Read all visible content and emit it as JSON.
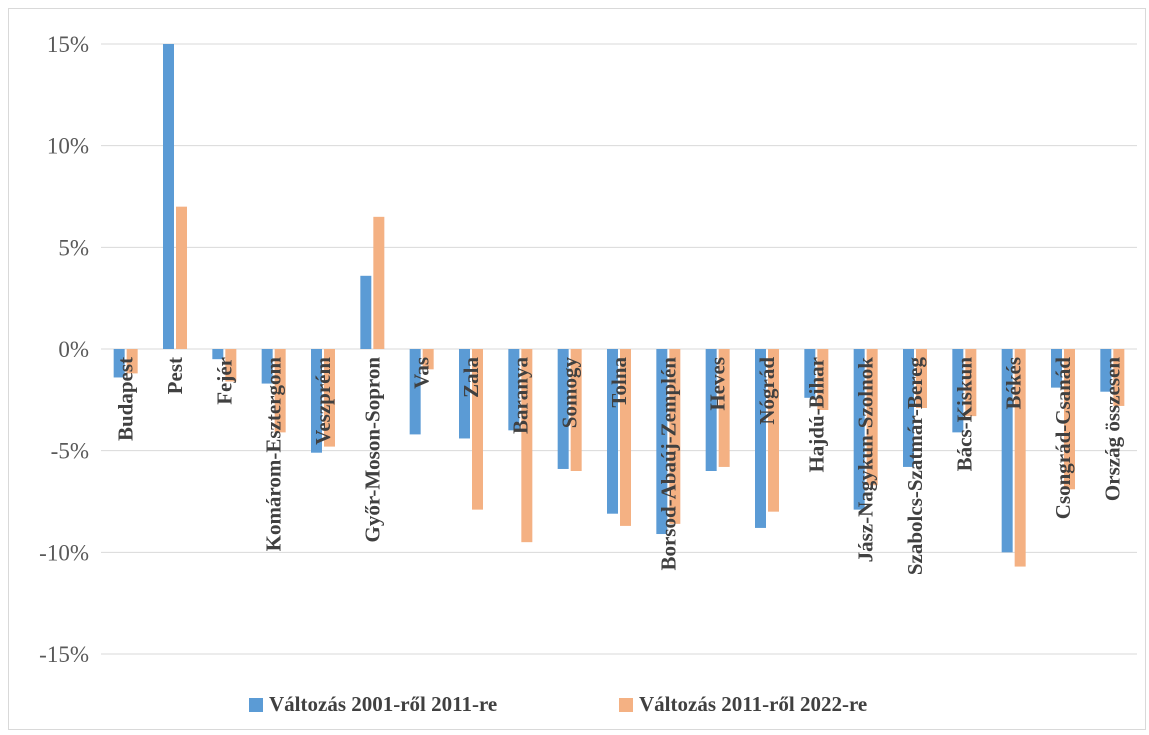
{
  "colors": {
    "series1": "#5b9bd5",
    "series2": "#f4b183",
    "grid": "#d9d9d9",
    "text": "#404040"
  },
  "chart_data": {
    "type": "bar",
    "title": "",
    "xlabel": "",
    "ylabel": "",
    "ylim": [
      -15,
      15
    ],
    "yticks": [
      15,
      10,
      5,
      0,
      -5,
      -10,
      -15
    ],
    "ytick_labels": [
      "15%",
      "10%",
      "5%",
      "0%",
      "-5%",
      "-10%",
      "-15%"
    ],
    "grid": true,
    "legend_position": "bottom",
    "categories": [
      "Budapest",
      "Pest",
      "Fejér",
      "Komárom-Esztergom",
      "Veszprém",
      "Győr-Moson-Sopron",
      "Vas",
      "Zala",
      "Baranya",
      "Somogy",
      "Tolna",
      "Borsod-Abaúj-Zemplén",
      "Heves",
      "Nógrád",
      "Hajdú-Bihar",
      "Jász-Nagykun-Szolnok",
      "Szabolcs-Szatmár-Bereg",
      "Bács-Kiskun",
      "Békés",
      "Csongrád-Csanád",
      "Ország összesen"
    ],
    "series": [
      {
        "name": "Változás 2001-ről 2011-re",
        "values": [
          -1.4,
          15.0,
          -0.5,
          -1.7,
          -5.1,
          3.6,
          -4.2,
          -4.4,
          -4.0,
          -5.9,
          -8.1,
          -9.1,
          -6.0,
          -8.8,
          -2.4,
          -7.9,
          -5.8,
          -4.1,
          -10.0,
          -1.9,
          -2.1
        ]
      },
      {
        "name": "Változás 2011-ről 2022-re",
        "values": [
          -1.2,
          7.0,
          -1.6,
          -4.1,
          -4.8,
          6.5,
          -1.0,
          -7.9,
          -9.5,
          -6.0,
          -8.7,
          -8.6,
          -5.8,
          -8.0,
          -3.0,
          -6.7,
          -2.9,
          -3.3,
          -10.7,
          -6.9,
          -2.8
        ]
      }
    ]
  }
}
